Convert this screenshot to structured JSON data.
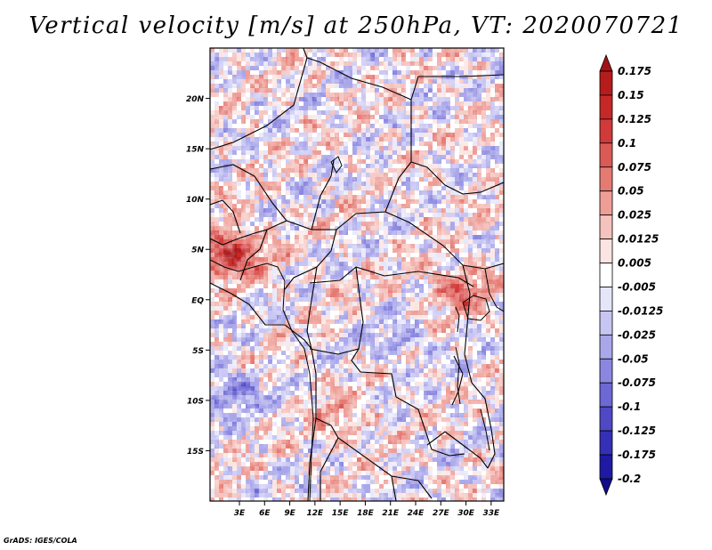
{
  "chart_data": {
    "type": "heatmap",
    "title": "Vertical velocity [m/s] at 250hPa, VT: 2020070721",
    "variable": "Vertical velocity",
    "units": "m/s",
    "level": "250hPa",
    "valid_time": "2020070721",
    "x_axis": {
      "range": [
        -0.5,
        34.5
      ],
      "tick_values": [
        3,
        6,
        9,
        12,
        15,
        18,
        21,
        24,
        27,
        30,
        33
      ],
      "tick_labels": [
        "3E",
        "6E",
        "9E",
        "12E",
        "15E",
        "18E",
        "21E",
        "24E",
        "27E",
        "30E",
        "33E"
      ]
    },
    "y_axis": {
      "range": [
        -20.0,
        25.0
      ],
      "tick_values": [
        20,
        15,
        10,
        5,
        0,
        -5,
        -10,
        -15
      ],
      "tick_labels": [
        "20N",
        "15N",
        "10N",
        "5N",
        "EQ",
        "5S",
        "10S",
        "15S"
      ]
    },
    "colorbar": {
      "levels": [
        0.175,
        0.15,
        0.125,
        0.1,
        0.075,
        0.05,
        0.025,
        0.0125,
        0.005,
        -0.005,
        -0.0125,
        -0.025,
        -0.05,
        -0.075,
        -0.1,
        -0.125,
        -0.175,
        -0.2
      ],
      "labels": [
        "0.175",
        "0.15",
        "0.125",
        "0.1",
        "0.075",
        "0.05",
        "0.025",
        "0.0125",
        "0.005",
        "-0.005",
        "-0.0125",
        "-0.025",
        "-0.05",
        "-0.075",
        "-0.1",
        "-0.125",
        "-0.175",
        "-0.2"
      ],
      "colors": [
        "#a51215",
        "#b71c1c",
        "#c62828",
        "#d13a3a",
        "#dc5a56",
        "#e57a72",
        "#ee9e97",
        "#f5c2bd",
        "#fbe4e1",
        "#ffffff",
        "#e6e6fa",
        "#c7c5f2",
        "#a9a6ea",
        "#8b87e0",
        "#6d68d4",
        "#4f49c6",
        "#3530b6",
        "#1f1aa3",
        "#120c8a"
      ]
    },
    "notable_features": [
      {
        "lon": 2,
        "lat": 4.5,
        "sign": "positive",
        "max_value": 0.175
      },
      {
        "lon": 15,
        "lat": -12,
        "sign": "positive",
        "max_value": 0.05
      },
      {
        "lon": 29,
        "lat": 1,
        "sign": "positive",
        "max_value": 0.1
      },
      {
        "lon": 2,
        "lat": -9,
        "sign": "negative",
        "max_value": -0.075
      },
      {
        "lon": 22,
        "lat": -4,
        "sign": "negative",
        "max_value": -0.05
      }
    ]
  },
  "footer": "GrADS: IGES/COLA"
}
